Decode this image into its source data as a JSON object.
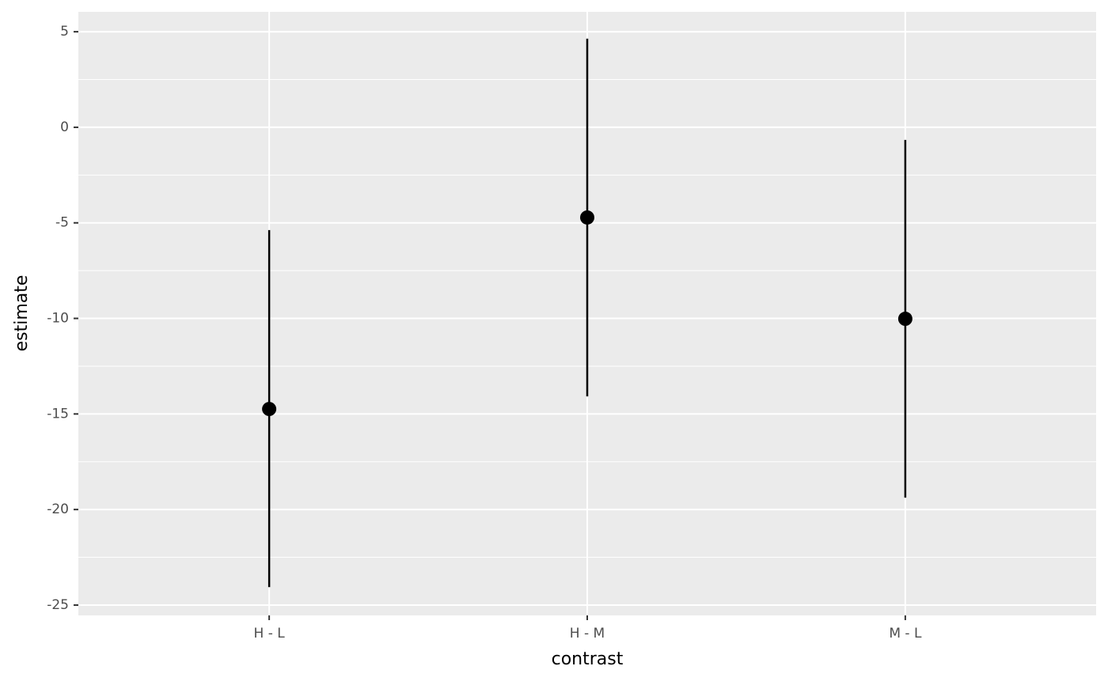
{
  "chart_data": {
    "type": "pointrange",
    "x_label": "contrast",
    "y_label": "estimate",
    "categories": [
      "H - L",
      "H - M",
      "M - L"
    ],
    "values": [
      -14.74,
      -4.72,
      -10.02
    ],
    "lower": [
      -24.06,
      -14.08,
      -19.38
    ],
    "upper": [
      -5.38,
      4.64,
      -0.66
    ],
    "color": "#000000",
    "ylim": [
      -25.54,
      6.04
    ],
    "yticks": [
      -25,
      -20,
      -15,
      -10,
      -5,
      0,
      5
    ],
    "grid": true
  }
}
